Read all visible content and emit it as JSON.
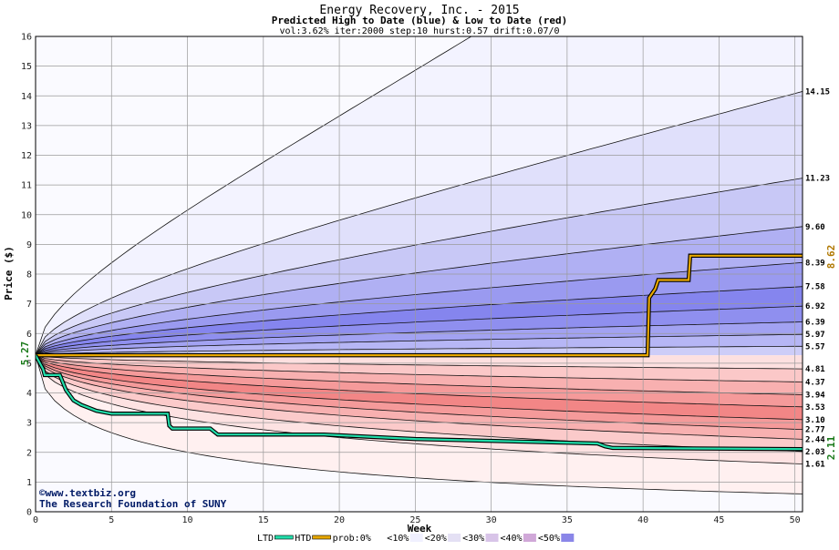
{
  "chart_data": {
    "type": "area",
    "title": "Energy Recovery, Inc. - 2015",
    "subtitle": "Predicted High to Date (blue) &  Low to Date (red)",
    "params": "vol:3.62% iter:2000 step:10 hurst:0.57 drift:0.07/0",
    "xlabel": "Week",
    "ylabel": "Price ($)",
    "xlim": [
      0,
      50.5
    ],
    "ylim": [
      0,
      16
    ],
    "x_ticks": [
      0,
      5,
      10,
      15,
      20,
      25,
      30,
      35,
      40,
      45,
      50
    ],
    "y_ticks": [
      1,
      2,
      3,
      4,
      5,
      6,
      7,
      8,
      9,
      10,
      11,
      12,
      13,
      14,
      15,
      16
    ],
    "grid": true,
    "start_price": 5.27,
    "start_label": "5.27",
    "htd_end_label": "8.62",
    "ltd_end_label": "2.11",
    "high_quantiles": [
      {
        "end": 23.0,
        "label": "",
        "fill": "#f3f3ff"
      },
      {
        "end": 14.15,
        "label": "14.15",
        "fill": "#e0e0fb"
      },
      {
        "end": 11.23,
        "label": "11.23",
        "fill": "#c8c8f6"
      },
      {
        "end": 9.6,
        "label": "9.60",
        "fill": "#b0b0f3"
      },
      {
        "end": 8.39,
        "label": "8.39",
        "fill": "#9a9af0"
      },
      {
        "end": 7.58,
        "label": "7.58",
        "fill": "#8585ee"
      },
      {
        "end": 6.92,
        "label": "6.92",
        "fill": "#8f8fef"
      },
      {
        "end": 6.39,
        "label": "6.39",
        "fill": "#a2a2f2"
      },
      {
        "end": 5.97,
        "label": "5.97",
        "fill": "#b6b6f5"
      },
      {
        "end": 5.57,
        "label": "5.57",
        "fill": "#cdcdf8"
      }
    ],
    "low_quantiles": [
      {
        "end": 4.81,
        "label": "4.81",
        "fill": "#fde0e0"
      },
      {
        "end": 4.37,
        "label": "4.37",
        "fill": "#fbc8c8"
      },
      {
        "end": 3.94,
        "label": "3.94",
        "fill": "#f8b0b0"
      },
      {
        "end": 3.53,
        "label": "3.53",
        "fill": "#f59a9a"
      },
      {
        "end": 3.1,
        "label": "3.10",
        "fill": "#f28686"
      },
      {
        "end": 2.77,
        "label": "2.77",
        "fill": "#f59a9a"
      },
      {
        "end": 2.44,
        "label": "2.44",
        "fill": "#f8b0b0"
      },
      {
        "end": 2.03,
        "label": "2.03",
        "fill": "#fbcaca"
      },
      {
        "end": 1.61,
        "label": "1.61",
        "fill": "#fde2e2"
      },
      {
        "end": 0.6,
        "label": "",
        "fill": "#fff0f0"
      }
    ],
    "htd_series": {
      "name": "HTD",
      "color": "#e8a800",
      "points": [
        [
          0,
          5.27
        ],
        [
          40.3,
          5.27
        ],
        [
          40.4,
          7.2
        ],
        [
          40.8,
          7.5
        ],
        [
          41,
          7.8
        ],
        [
          43,
          7.8
        ],
        [
          43.1,
          8.62
        ],
        [
          50.5,
          8.62
        ]
      ]
    },
    "ltd_series": {
      "name": "LTD",
      "color": "#22ddaa",
      "points": [
        [
          0,
          5.27
        ],
        [
          0.5,
          4.8
        ],
        [
          0.6,
          4.6
        ],
        [
          1.6,
          4.6
        ],
        [
          2,
          4.1
        ],
        [
          2.5,
          3.75
        ],
        [
          3,
          3.6
        ],
        [
          3.5,
          3.5
        ],
        [
          4,
          3.4
        ],
        [
          4.5,
          3.35
        ],
        [
          5,
          3.3
        ],
        [
          8.7,
          3.3
        ],
        [
          8.8,
          2.9
        ],
        [
          9,
          2.8
        ],
        [
          11.5,
          2.8
        ],
        [
          12,
          2.6
        ],
        [
          19,
          2.6
        ],
        [
          25,
          2.45
        ],
        [
          37,
          2.3
        ],
        [
          37.5,
          2.2
        ],
        [
          38,
          2.15
        ],
        [
          50.5,
          2.11
        ]
      ]
    },
    "credits": [
      "©www.textbiz.org",
      "The Research Foundation of SUNY"
    ],
    "legend": [
      {
        "label": "LTD",
        "type": "line",
        "color": "#22ddaa"
      },
      {
        "label": "HTD",
        "type": "line",
        "color": "#e8a800"
      },
      {
        "label": "prob:0%",
        "type": "swatch",
        "color": "#ffffff"
      },
      {
        "label": "<10%",
        "type": "swatch",
        "color": "#f0f0ff"
      },
      {
        "label": "<20%",
        "type": "swatch",
        "color": "#e4e0f4"
      },
      {
        "label": "<30%",
        "type": "swatch",
        "color": "#d8c4e8"
      },
      {
        "label": "<40%",
        "type": "swatch",
        "color": "#d0a8d8"
      },
      {
        "label": "<50%",
        "type": "swatch",
        "color": "#8a86e8"
      }
    ]
  }
}
